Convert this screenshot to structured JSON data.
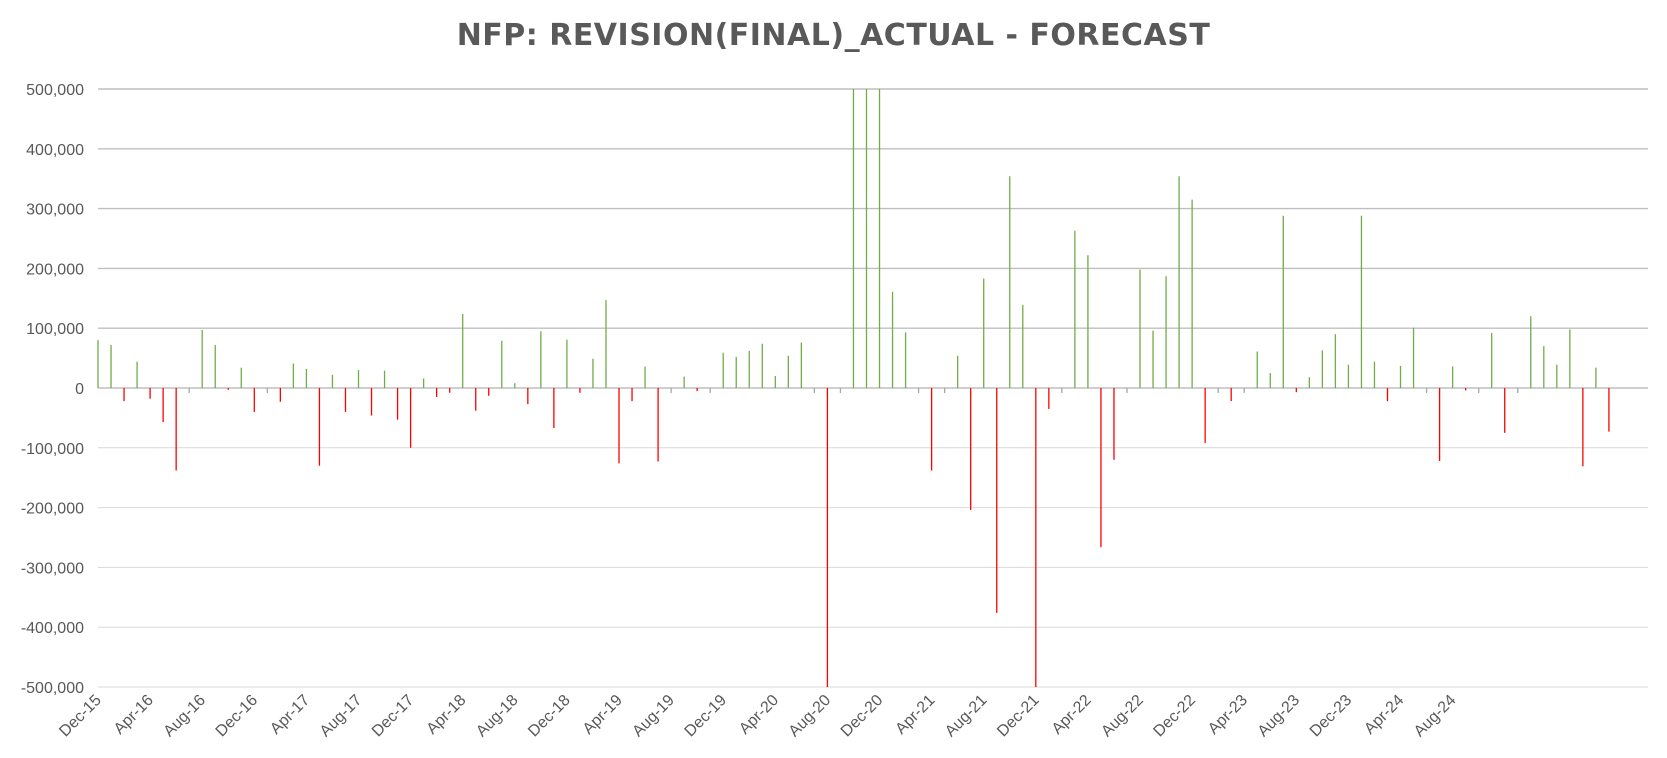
{
  "chart_data": {
    "type": "bar",
    "title": "NFP: REVISION(FINAL)_ACTUAL - FORECAST",
    "xlabel": "",
    "ylabel": "",
    "ylim": [
      -500000,
      500000
    ],
    "y_ticks": [
      "500,000",
      "400,000",
      "300,000",
      "200,000",
      "100,000",
      "0",
      "-100,000",
      "-200,000",
      "-300,000",
      "-400,000",
      "-500,000"
    ],
    "x_tick_labels": [
      "Dec-15",
      "Apr-16",
      "Aug-16",
      "Dec-16",
      "Apr-17",
      "Aug-17",
      "Dec-17",
      "Apr-18",
      "Aug-18",
      "Dec-18",
      "Apr-19",
      "Aug-19",
      "Dec-19",
      "Apr-20",
      "Aug-20",
      "Dec-20",
      "Apr-21",
      "Aug-21",
      "Dec-21",
      "Apr-22",
      "Aug-22",
      "Dec-22",
      "Apr-23",
      "Aug-23",
      "Dec-23",
      "Apr-24",
      "Aug-24"
    ],
    "first_month": "Dec-15",
    "grid": true,
    "legend": "none",
    "colors": {
      "positive": "#70ad47",
      "negative": "#ff0000",
      "zero": "#a6a6a6"
    },
    "values": [
      80000,
      72000,
      -22000,
      44000,
      -18000,
      -57000,
      -138000,
      0,
      97000,
      72000,
      -3000,
      34000,
      -40000,
      0,
      -23000,
      41000,
      32000,
      -130000,
      22000,
      -40000,
      30000,
      -46000,
      29000,
      -53000,
      -100000,
      16000,
      -15000,
      -8000,
      124000,
      -38000,
      -13000,
      79000,
      8000,
      -27000,
      95000,
      -67000,
      81000,
      -8000,
      49000,
      147000,
      -126000,
      -22000,
      36000,
      -123000,
      0,
      19000,
      -5000,
      0,
      59000,
      52000,
      62000,
      74000,
      20000,
      54000,
      76000,
      0,
      -500000,
      0,
      500000,
      500000,
      500000,
      161000,
      93000,
      0,
      -138000,
      0,
      54000,
      -204000,
      183000,
      -376000,
      354000,
      139000,
      -500000,
      -35000,
      0,
      263000,
      222000,
      -266000,
      -120000,
      0,
      198000,
      96000,
      187000,
      354000,
      315000,
      -92000,
      0,
      -22000,
      0,
      61000,
      25000,
      288000,
      -7000,
      18000,
      63000,
      90000,
      39000,
      288000,
      44000,
      -22000,
      37000,
      101000,
      0,
      -122000,
      36000,
      -4000,
      0,
      92000,
      -75000,
      0,
      120000,
      70000,
      39000,
      98000,
      -131000,
      34000,
      -73000
    ]
  }
}
